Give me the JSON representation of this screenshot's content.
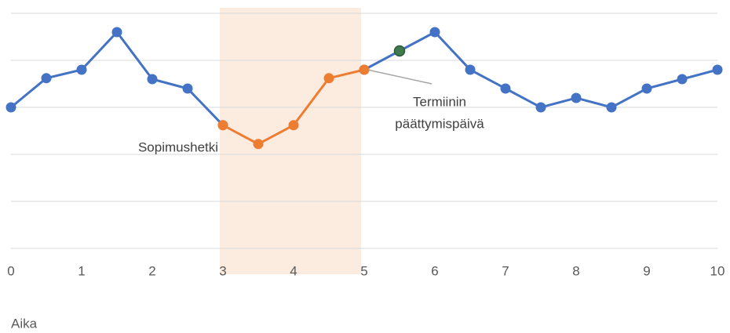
{
  "chart_data": {
    "type": "line",
    "x_label": "Aika",
    "x": [
      0,
      0.5,
      1,
      1.5,
      2,
      2.5,
      3,
      3.5,
      4,
      4.5,
      5,
      5.5,
      6,
      6.5,
      7,
      7.5,
      8,
      8.5,
      9,
      9.5,
      10
    ],
    "series": [
      {
        "color": "#4472c4",
        "values": [
          3,
          3.62,
          3.8,
          4.6,
          3.6,
          3.4,
          2.62,
          null,
          null,
          null,
          3.8,
          4.2,
          4.6,
          3.8,
          3.4,
          3,
          3.2,
          3,
          3.4,
          3.6,
          3.8
        ]
      },
      {
        "color": "#ed7d31",
        "values": [
          null,
          null,
          null,
          null,
          null,
          null,
          2.62,
          2.22,
          2.62,
          3.62,
          3.8,
          null,
          null,
          null,
          null,
          null,
          null,
          null,
          null,
          null,
          null
        ]
      }
    ],
    "highlight_points": [
      {
        "series": 0,
        "index": 6,
        "color": "#8e90c8"
      },
      {
        "series": 0,
        "index": 11,
        "color": "#3f7a4e"
      }
    ],
    "shaded_region": {
      "x": [
        3,
        5
      ],
      "color": "#fbe5d6"
    },
    "xlim": [
      0,
      10
    ],
    "xticks": [
      0,
      1,
      2,
      3,
      4,
      5,
      6,
      7,
      8,
      9,
      10
    ],
    "ylim": [
      0,
      5
    ],
    "yticks": [
      0,
      1,
      2,
      3,
      4,
      5
    ],
    "grid": true,
    "annotations": [
      {
        "lines": [
          "Sopimushetki"
        ]
      },
      {
        "lines": [
          "Termiinin",
          "päättymispäivä"
        ]
      }
    ]
  }
}
